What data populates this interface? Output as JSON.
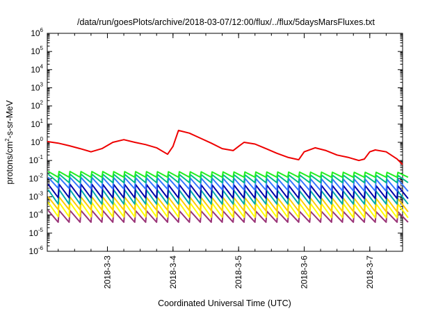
{
  "chart_data": {
    "type": "line",
    "title": "/data/run/goesPlots/archive/2018-03-07/12:00/flux/../flux/5daysMarsFluxes.txt",
    "xlabel": "Coordinated Universal Time (UTC)",
    "ylabel": {
      "prefix": "protons/cm",
      "sup": "2",
      "suffix": "-s-sr-MeV"
    },
    "yscale": "log",
    "ylim": [
      1e-06,
      1000000.0
    ],
    "y_ticks": [
      {
        "base": "10",
        "exp": "-6"
      },
      {
        "base": "10",
        "exp": "-5"
      },
      {
        "base": "10",
        "exp": "-4"
      },
      {
        "base": "10",
        "exp": "-3"
      },
      {
        "base": "10",
        "exp": "-2"
      },
      {
        "base": "10",
        "exp": "-1"
      },
      {
        "base": "10",
        "exp": "0"
      },
      {
        "base": "10",
        "exp": "1"
      },
      {
        "base": "10",
        "exp": "2"
      },
      {
        "base": "10",
        "exp": "3"
      },
      {
        "base": "10",
        "exp": "4"
      },
      {
        "base": "10",
        "exp": "5"
      },
      {
        "base": "10",
        "exp": "6"
      }
    ],
    "xlim": [
      "2018-03-02 02:00",
      "2018-03-07 12:00"
    ],
    "x_ticks": [
      "2018-3-3",
      "2018-3-4",
      "2018-3-5",
      "2018-3-6",
      "2018-3-7"
    ],
    "grid": false,
    "legend": "none",
    "sawtooth_period_hours": 4,
    "series": [
      {
        "color": "#ee0000",
        "points": [
          [
            "2018-03-02 02:00",
            1.1
          ],
          [
            "2018-03-02 06:00",
            0.9
          ],
          [
            "2018-03-02 10:00",
            0.65
          ],
          [
            "2018-03-02 14:00",
            0.45
          ],
          [
            "2018-03-02 18:00",
            0.3
          ],
          [
            "2018-03-02 22:00",
            0.45
          ],
          [
            "2018-03-03 02:00",
            1.0
          ],
          [
            "2018-03-03 06:00",
            1.4
          ],
          [
            "2018-03-03 10:00",
            1.0
          ],
          [
            "2018-03-03 14:00",
            0.75
          ],
          [
            "2018-03-03 18:00",
            0.5
          ],
          [
            "2018-03-03 22:00",
            0.22
          ],
          [
            "2018-03-04 00:00",
            0.6
          ],
          [
            "2018-03-04 02:00",
            4.5
          ],
          [
            "2018-03-04 06:00",
            3.2
          ],
          [
            "2018-03-04 10:00",
            1.7
          ],
          [
            "2018-03-04 14:00",
            0.9
          ],
          [
            "2018-03-04 18:00",
            0.45
          ],
          [
            "2018-03-04 22:00",
            0.35
          ],
          [
            "2018-03-05 00:00",
            0.6
          ],
          [
            "2018-03-05 02:00",
            1.0
          ],
          [
            "2018-03-05 06:00",
            0.8
          ],
          [
            "2018-03-05 10:00",
            0.45
          ],
          [
            "2018-03-05 14:00",
            0.25
          ],
          [
            "2018-03-05 18:00",
            0.15
          ],
          [
            "2018-03-05 22:00",
            0.11
          ],
          [
            "2018-03-06 00:00",
            0.3
          ],
          [
            "2018-03-06 04:00",
            0.5
          ],
          [
            "2018-03-06 08:00",
            0.35
          ],
          [
            "2018-03-06 12:00",
            0.2
          ],
          [
            "2018-03-06 16:00",
            0.15
          ],
          [
            "2018-03-06 20:00",
            0.1
          ],
          [
            "2018-03-06 22:00",
            0.12
          ],
          [
            "2018-03-07 00:00",
            0.3
          ],
          [
            "2018-03-07 02:00",
            0.38
          ],
          [
            "2018-03-07 06:00",
            0.3
          ],
          [
            "2018-03-07 10:00",
            0.12
          ],
          [
            "2018-03-07 12:00",
            0.06
          ]
        ]
      },
      {
        "color": "#22ee22",
        "sawtooth": {
          "start": [
            0.012,
            0.025
          ],
          "end": [
            0.012,
            0.022
          ]
        }
      },
      {
        "color": "#00bb88",
        "sawtooth": {
          "start": [
            0.006,
            0.018
          ],
          "end": [
            0.006,
            0.015
          ]
        }
      },
      {
        "color": "#3377ff",
        "sawtooth": {
          "start": [
            0.003,
            0.012
          ],
          "end": [
            0.002,
            0.009
          ]
        }
      },
      {
        "color": "#0000aa",
        "sawtooth": {
          "start": [
            0.0009,
            0.005
          ],
          "end": [
            0.0008,
            0.004
          ]
        }
      },
      {
        "color": "#00aaaa",
        "sawtooth": {
          "start": [
            0.0004,
            0.0025
          ],
          "end": [
            0.0004,
            0.002
          ]
        }
      },
      {
        "color": "#ffcc00",
        "sawtooth": {
          "start": [
            0.0002,
            0.001
          ],
          "end": [
            0.00015,
            0.0008
          ]
        }
      },
      {
        "color": "#ffff00",
        "sawtooth": {
          "start": [
            8e-05,
            0.0005
          ],
          "end": [
            7e-05,
            0.0004
          ]
        }
      },
      {
        "color": "#993377",
        "sawtooth": {
          "start": [
            4e-05,
            0.00018
          ],
          "end": [
            4e-05,
            0.00015
          ]
        }
      }
    ]
  }
}
